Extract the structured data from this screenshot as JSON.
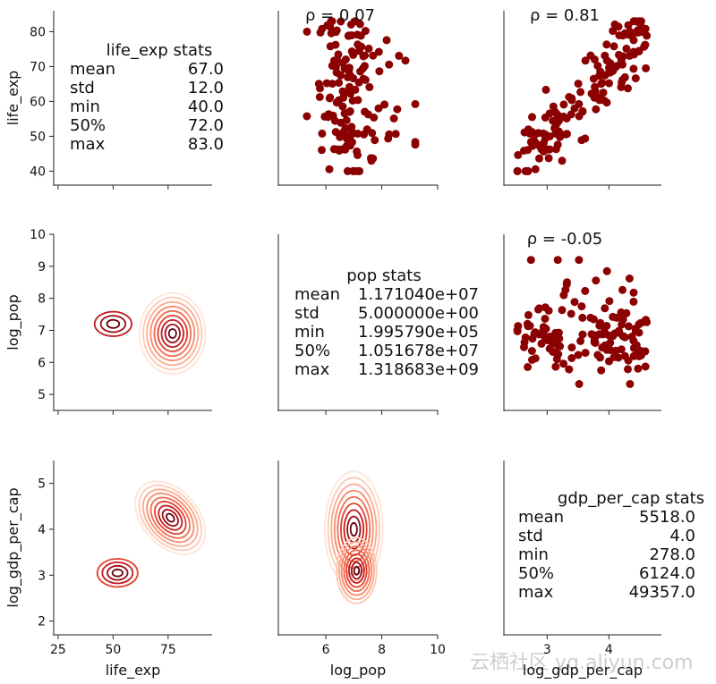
{
  "chart_data": {
    "type": "pairgrid",
    "variables": [
      "life_exp",
      "log_pop",
      "log_gdp_per_cap"
    ],
    "marker_color": "#8b0000",
    "kde_colormap": "Reds",
    "axes": {
      "life_exp": {
        "label": "life_exp",
        "y_range": [
          36,
          86
        ],
        "y_ticks": [
          40,
          50,
          60,
          70,
          80
        ],
        "x_range": [
          23,
          95
        ],
        "x_ticks": [
          25,
          50,
          75
        ]
      },
      "log_pop": {
        "label": "log_pop",
        "y_range": [
          4.5,
          10
        ],
        "y_ticks": [
          5,
          6,
          7,
          8,
          9,
          10
        ],
        "x_range": [
          4.3,
          10
        ],
        "x_ticks": [
          6,
          8,
          10
        ]
      },
      "log_gdp_per_cap": {
        "label": "log_gdp_per_cap",
        "y_range": [
          1.7,
          5.5
        ],
        "y_ticks": [
          2,
          3,
          4,
          5
        ],
        "x_range": [
          2.3,
          4.85
        ],
        "x_ticks": [
          3,
          4
        ]
      }
    },
    "correlations": {
      "life_exp_vs_log_pop": "ρ = 0.07",
      "life_exp_vs_log_gdp_per_cap": "ρ = 0.81",
      "log_pop_vs_log_gdp_per_cap": "ρ = -0.05"
    },
    "stats": {
      "life_exp": {
        "title": "life_exp stats",
        "rows": [
          {
            "label": "mean",
            "value": "67.0"
          },
          {
            "label": "std",
            "value": "12.0"
          },
          {
            "label": "min",
            "value": "40.0"
          },
          {
            "label": "50%",
            "value": "72.0"
          },
          {
            "label": "max",
            "value": "83.0"
          }
        ]
      },
      "log_pop": {
        "title": "pop stats",
        "rows": [
          {
            "label": "mean",
            "value": "1.171040e+07"
          },
          {
            "label": "std",
            "value": "5.000000e+00"
          },
          {
            "label": "min",
            "value": "1.995790e+05"
          },
          {
            "label": "50%",
            "value": "1.051678e+07"
          },
          {
            "label": "max",
            "value": "1.318683e+09"
          }
        ]
      },
      "log_gdp_per_cap": {
        "title": "gdp_per_cap stats",
        "rows": [
          {
            "label": "mean",
            "value": "5518.0"
          },
          {
            "label": "std",
            "value": "4.0"
          },
          {
            "label": "min",
            "value": "278.0"
          },
          {
            "label": "50%",
            "value": "6124.0"
          },
          {
            "label": "max",
            "value": "49357.0"
          }
        ]
      }
    },
    "kde_modes": {
      "log_pop_vs_life_exp": [
        {
          "x": 77,
          "y": 6.9,
          "sx": 6.5,
          "sy": 0.55,
          "w": 1.0
        },
        {
          "x": 50,
          "y": 7.2,
          "sx": 11,
          "sy": 0.5,
          "w": 0.35
        }
      ],
      "log_gdp_per_cap_vs_life_exp": [
        {
          "x": 76,
          "y": 4.25,
          "sx": 5.5,
          "sy": 0.4,
          "w": 1.0,
          "rot": 0.6
        },
        {
          "x": 52,
          "y": 3.05,
          "sx": 9,
          "sy": 0.3,
          "w": 0.45
        }
      ],
      "log_gdp_per_cap_vs_log_pop": [
        {
          "x": 7.0,
          "y": 4.0,
          "sx": 0.45,
          "sy": 0.55,
          "w": 1.0
        },
        {
          "x": 7.1,
          "y": 3.1,
          "sx": 0.35,
          "sy": 0.35,
          "w": 0.85
        }
      ]
    }
  },
  "watermark": "云栖社区 yq.aliyun.com"
}
